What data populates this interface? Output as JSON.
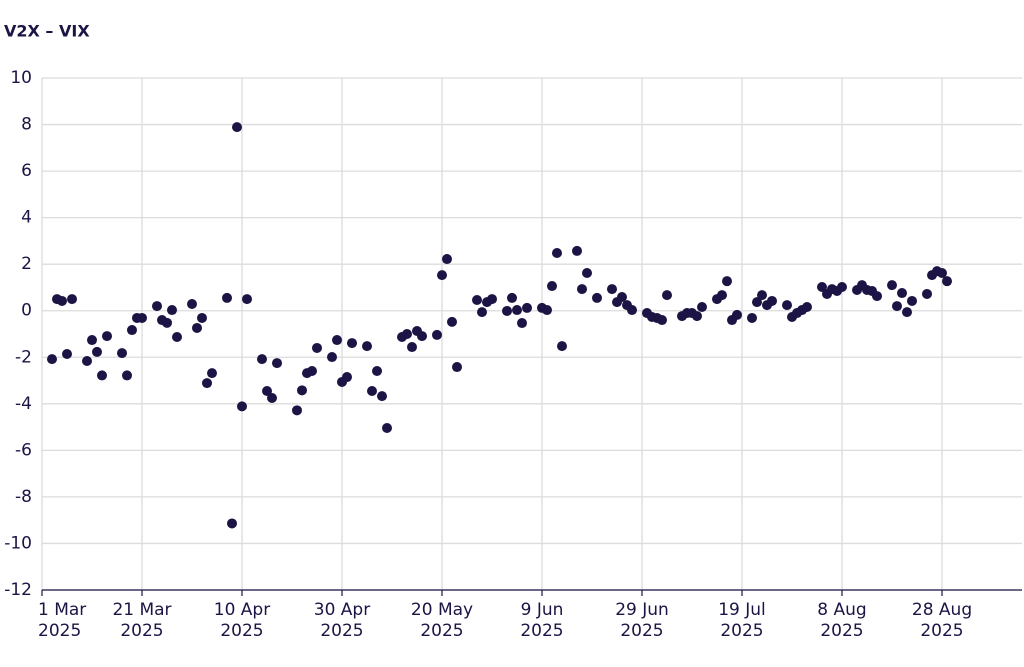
{
  "chart_data": {
    "type": "scatter",
    "title": "V2X – VIX",
    "color": "#1c1445",
    "grid": true,
    "x": [
      "2025-03-03",
      "2025-03-04",
      "2025-03-05",
      "2025-03-06",
      "2025-03-07",
      "2025-03-10",
      "2025-03-11",
      "2025-03-12",
      "2025-03-13",
      "2025-03-14",
      "2025-03-17",
      "2025-03-18",
      "2025-03-19",
      "2025-03-20",
      "2025-03-21",
      "2025-03-24",
      "2025-03-25",
      "2025-03-26",
      "2025-03-27",
      "2025-03-28",
      "2025-03-31",
      "2025-04-01",
      "2025-04-02",
      "2025-04-03",
      "2025-04-04",
      "2025-04-07",
      "2025-04-08",
      "2025-04-09",
      "2025-04-10",
      "2025-04-11",
      "2025-04-14",
      "2025-04-15",
      "2025-04-16",
      "2025-04-17",
      "2025-04-21",
      "2025-04-22",
      "2025-04-23",
      "2025-04-24",
      "2025-04-25",
      "2025-04-28",
      "2025-04-29",
      "2025-04-30",
      "2025-05-01",
      "2025-05-02",
      "2025-05-05",
      "2025-05-06",
      "2025-05-07",
      "2025-05-08",
      "2025-05-09",
      "2025-05-12",
      "2025-05-13",
      "2025-05-14",
      "2025-05-15",
      "2025-05-16",
      "2025-05-19",
      "2025-05-20",
      "2025-05-21",
      "2025-05-22",
      "2025-05-23",
      "2025-05-27",
      "2025-05-28",
      "2025-05-29",
      "2025-05-30",
      "2025-06-02",
      "2025-06-03",
      "2025-06-04",
      "2025-06-05",
      "2025-06-06",
      "2025-06-09",
      "2025-06-10",
      "2025-06-11",
      "2025-06-12",
      "2025-06-13",
      "2025-06-16",
      "2025-06-17",
      "2025-06-18",
      "2025-06-20",
      "2025-06-23",
      "2025-06-24",
      "2025-06-25",
      "2025-06-26",
      "2025-06-27",
      "2025-06-30",
      "2025-07-01",
      "2025-07-02",
      "2025-07-03",
      "2025-07-04",
      "2025-07-07",
      "2025-07-08",
      "2025-07-09",
      "2025-07-10",
      "2025-07-11",
      "2025-07-14",
      "2025-07-15",
      "2025-07-16",
      "2025-07-17",
      "2025-07-18",
      "2025-07-21",
      "2025-07-22",
      "2025-07-23",
      "2025-07-24",
      "2025-07-25",
      "2025-07-28",
      "2025-07-29",
      "2025-07-30",
      "2025-07-31",
      "2025-08-01",
      "2025-08-04",
      "2025-08-05",
      "2025-08-06",
      "2025-08-07",
      "2025-08-08",
      "2025-08-11",
      "2025-08-12",
      "2025-08-13",
      "2025-08-14",
      "2025-08-15",
      "2025-08-18",
      "2025-08-19",
      "2025-08-20",
      "2025-08-21",
      "2025-08-22",
      "2025-08-25",
      "2025-08-26",
      "2025-08-27",
      "2025-08-28",
      "2025-08-29"
    ],
    "values": [
      -2.08,
      0.5,
      0.42,
      -1.86,
      0.5,
      -2.16,
      -1.26,
      -1.77,
      -2.78,
      -1.09,
      -1.82,
      -2.78,
      -0.83,
      -0.31,
      -0.31,
      0.2,
      -0.4,
      -0.52,
      0.03,
      -1.13,
      0.29,
      -0.74,
      -0.31,
      -3.11,
      -2.68,
      0.55,
      -9.14,
      7.89,
      -4.11,
      0.5,
      -2.08,
      -3.45,
      -3.75,
      -2.25,
      -4.28,
      -3.42,
      -2.68,
      -2.59,
      -1.6,
      -1.99,
      -1.26,
      -3.06,
      -2.85,
      -1.39,
      -1.52,
      -3.45,
      -2.59,
      -3.67,
      -5.04,
      -1.13,
      -1.0,
      -1.56,
      -0.87,
      -1.09,
      -1.04,
      1.53,
      2.22,
      -0.48,
      -2.42,
      0.46,
      -0.06,
      0.37,
      0.5,
      -0.01,
      0.55,
      0.03,
      -0.53,
      0.12,
      0.12,
      0.03,
      1.06,
      2.48,
      -1.52,
      2.57,
      0.93,
      1.62,
      0.55,
      0.93,
      0.37,
      0.59,
      0.24,
      0.03,
      -0.1,
      -0.27,
      -0.31,
      -0.4,
      0.67,
      -0.23,
      -0.1,
      -0.1,
      -0.23,
      0.16,
      0.5,
      0.67,
      1.27,
      -0.4,
      -0.18,
      -0.31,
      0.37,
      0.67,
      0.24,
      0.42,
      0.24,
      -0.27,
      -0.1,
      0.03,
      0.16,
      1.02,
      0.72,
      0.93,
      0.85,
      1.02,
      0.89,
      1.1,
      0.89,
      0.85,
      0.63,
      1.1,
      0.2,
      0.76,
      -0.06,
      0.42,
      0.72,
      1.53,
      1.7,
      1.62,
      1.27
    ],
    "xlim": [
      "2025-03-01",
      "2025-09-13"
    ],
    "xticks": [
      {
        "value": "2025-03-01",
        "label": "1 Mar 2025"
      },
      {
        "value": "2025-03-21",
        "label": "21 Mar 2025"
      },
      {
        "value": "2025-04-10",
        "label": "10 Apr 2025"
      },
      {
        "value": "2025-04-30",
        "label": "30 Apr 2025"
      },
      {
        "value": "2025-05-20",
        "label": "20 May 2025"
      },
      {
        "value": "2025-06-09",
        "label": "9 Jun 2025"
      },
      {
        "value": "2025-06-29",
        "label": "29 Jun 2025"
      },
      {
        "value": "2025-07-19",
        "label": "19 Jul 2025"
      },
      {
        "value": "2025-08-08",
        "label": "8 Aug 2025"
      },
      {
        "value": "2025-08-28",
        "label": "28 Aug 2025"
      }
    ],
    "ylim": [
      -12,
      10
    ],
    "yticks": [
      -12,
      -10,
      -8,
      -6,
      -4,
      -2,
      0,
      2,
      4,
      6,
      8,
      10
    ]
  }
}
